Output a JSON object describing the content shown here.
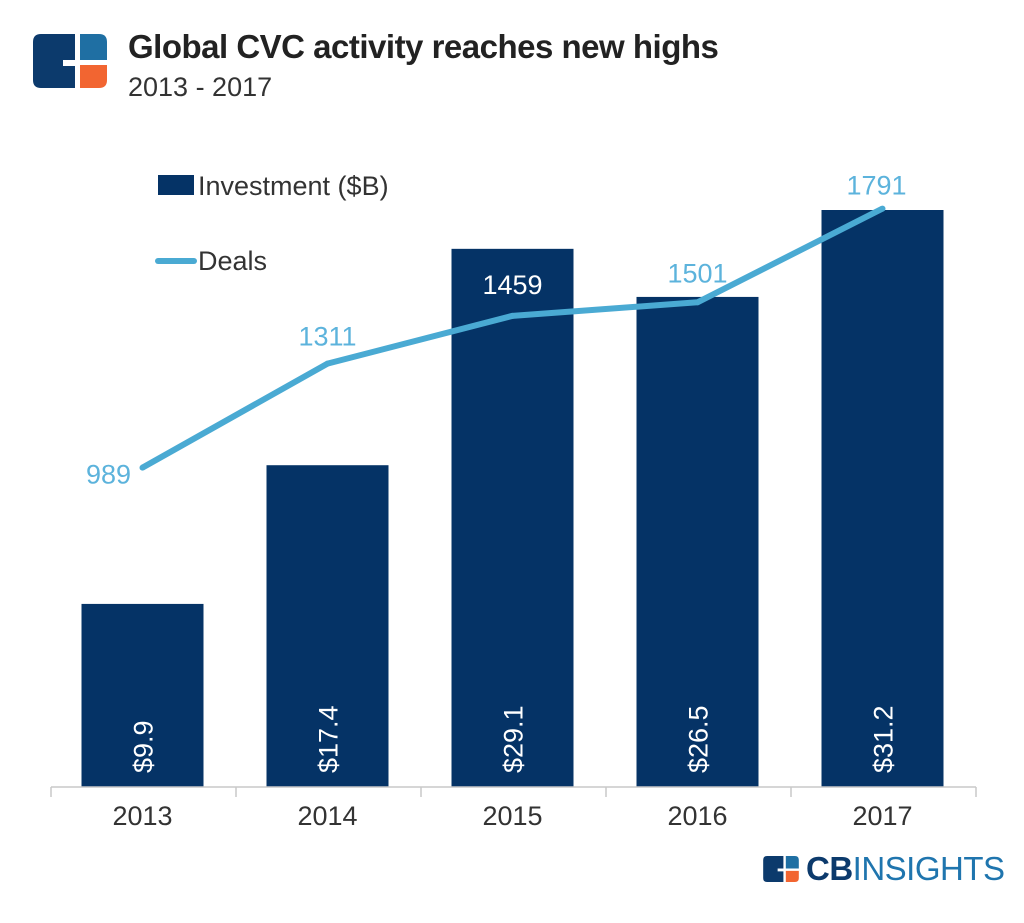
{
  "header": {
    "title": "Global CVC activity reaches new highs",
    "subtitle": "2013 - 2017"
  },
  "brand": {
    "logo_text_bold": "CB",
    "logo_text_light": "INSIGHTS"
  },
  "colors": {
    "bar": "#053366",
    "line": "#4aaad3",
    "deal_label": "#5cb3dc",
    "logo_dark": "#0c3a6c",
    "logo_blue": "#1f6fa3",
    "logo_orange": "#f26531"
  },
  "chart_data": {
    "type": "bar+line",
    "categories": [
      "2013",
      "2014",
      "2015",
      "2016",
      "2017"
    ],
    "series": [
      {
        "name": "Investment ($B)",
        "type": "bar",
        "values": [
          9.9,
          17.4,
          29.1,
          26.5,
          31.2
        ],
        "labels": [
          "$9.9",
          "$17.4",
          "$29.1",
          "$26.5",
          "$31.2"
        ]
      },
      {
        "name": "Deals",
        "type": "line",
        "values": [
          989,
          1311,
          1459,
          1501,
          1791
        ],
        "labels": [
          "989",
          "1311",
          "1459",
          "1501",
          "1791"
        ]
      }
    ],
    "legend": "top-left",
    "grid": false
  }
}
